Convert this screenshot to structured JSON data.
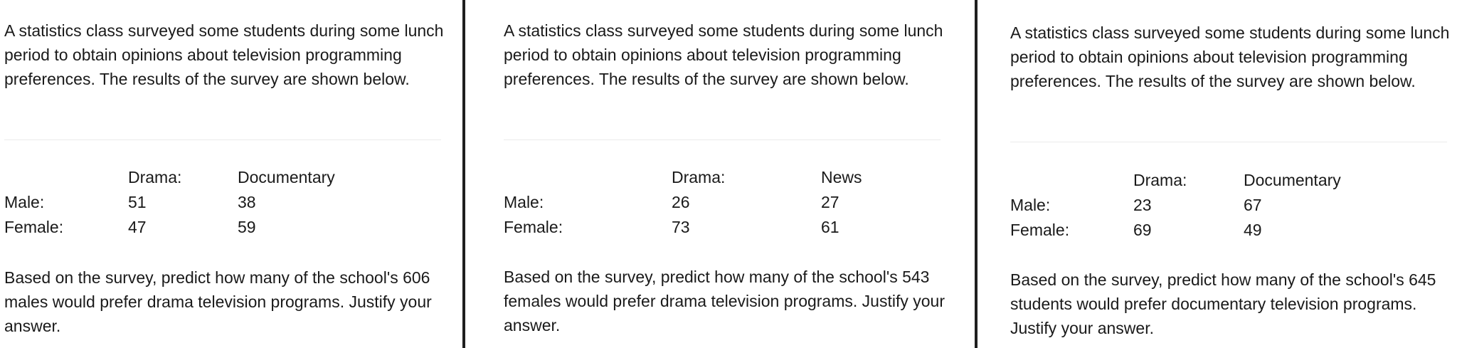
{
  "panels": [
    {
      "intro": "A statistics class surveyed some students during some lunch period to obtain opinions about television programming preferences. The results of the survey are shown below.",
      "table": {
        "headers": [
          "",
          "Drama:",
          "Documentary"
        ],
        "rows": [
          {
            "label": "Male:",
            "col1": "51",
            "col2": "38"
          },
          {
            "label": "Female:",
            "col1": "47",
            "col2": "59"
          }
        ]
      },
      "question": "Based on the survey, predict how many of the school's 606 males would prefer drama television programs. Justify your answer."
    },
    {
      "intro": "A statistics class surveyed some students during some lunch period to obtain opinions about television programming preferences. The results of the survey are shown below.",
      "table": {
        "headers": [
          "",
          "Drama:",
          "News"
        ],
        "rows": [
          {
            "label": "Male:",
            "col1": "26",
            "col2": "27"
          },
          {
            "label": "Female:",
            "col1": "73",
            "col2": "61"
          }
        ]
      },
      "question": "Based on the survey, predict how many of the school's 543 females would prefer drama television programs. Justify your answer."
    },
    {
      "intro": "A statistics class surveyed some students during some lunch period to obtain opinions about television programming preferences. The results of the survey are shown below.",
      "table": {
        "headers": [
          "",
          "Drama:",
          "Documentary"
        ],
        "rows": [
          {
            "label": "Male:",
            "col1": "23",
            "col2": "67"
          },
          {
            "label": "Female:",
            "col1": "69",
            "col2": "49"
          }
        ]
      },
      "question": "Based on the survey, predict how many of the school's 645 students would prefer documentary television programs. Justify your answer."
    }
  ]
}
